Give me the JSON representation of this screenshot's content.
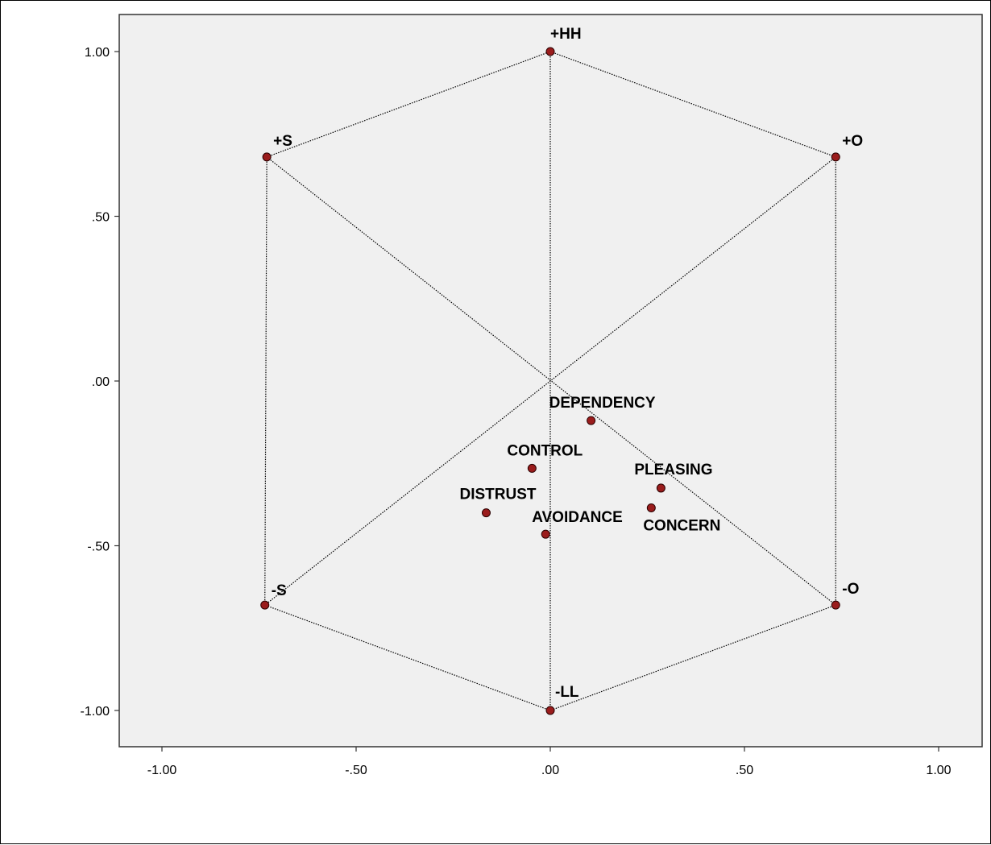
{
  "chart_data": {
    "type": "scatter",
    "title": "",
    "xlabel": "",
    "ylabel": "",
    "xlim": [
      -1.11,
      1.11
    ],
    "ylim": [
      -1.11,
      1.11
    ],
    "x_ticks": [
      {
        "value": -1.0,
        "label": "-1.00"
      },
      {
        "value": -0.5,
        "label": "-.50"
      },
      {
        "value": 0.0,
        "label": ".00"
      },
      {
        "value": 0.5,
        "label": ".50"
      },
      {
        "value": 1.0,
        "label": "1.00"
      }
    ],
    "y_ticks": [
      {
        "value": 1.0,
        "label": "1.00"
      },
      {
        "value": 0.5,
        "label": ".50"
      },
      {
        "value": 0.0,
        "label": ".00"
      },
      {
        "value": -0.5,
        "label": "-.50"
      },
      {
        "value": -1.0,
        "label": "-1.00"
      }
    ],
    "grid": false,
    "plot_background": "#f0f0f0",
    "marker_color": "#9a1c1c",
    "line_color": "#000000",
    "line_style": "dotted",
    "points": [
      {
        "name": "+HH",
        "x": 0.0,
        "y": 1.0
      },
      {
        "name": "+S",
        "x": -0.73,
        "y": 0.68
      },
      {
        "name": "+O",
        "x": 0.735,
        "y": 0.68
      },
      {
        "name": "-S",
        "x": -0.735,
        "y": -0.68
      },
      {
        "name": "-O",
        "x": 0.735,
        "y": -0.68
      },
      {
        "name": "-LL",
        "x": 0.0,
        "y": -1.0
      },
      {
        "name": "DEPENDENCY",
        "x": 0.105,
        "y": -0.12
      },
      {
        "name": "CONTROL",
        "x": -0.047,
        "y": -0.265
      },
      {
        "name": "PLEASING",
        "x": 0.285,
        "y": -0.325
      },
      {
        "name": "DISTRUST",
        "x": -0.165,
        "y": -0.4
      },
      {
        "name": "CONCERN",
        "x": 0.26,
        "y": -0.385
      },
      {
        "name": "AVOIDANCE",
        "x": -0.012,
        "y": -0.465
      }
    ],
    "connections": [
      [
        "+HH",
        "+O"
      ],
      [
        "+O",
        "-O"
      ],
      [
        "-O",
        "-LL"
      ],
      [
        "-LL",
        "-S"
      ],
      [
        "-S",
        "+S"
      ],
      [
        "+S",
        "+HH"
      ],
      [
        "+HH",
        "-LL"
      ],
      [
        "+S",
        "-O"
      ],
      [
        "+O",
        "-S"
      ]
    ]
  }
}
